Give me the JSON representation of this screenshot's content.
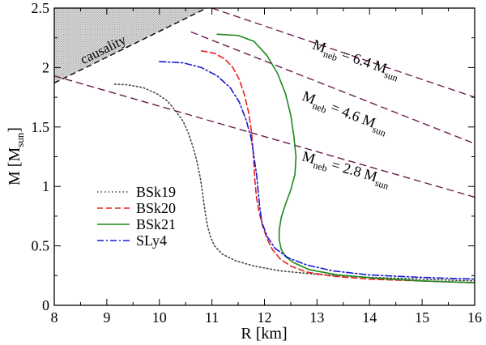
{
  "chart_data": {
    "type": "line",
    "xlabel": "R [km]",
    "ylabel": "M [M",
    "ylabel_sub": "sun",
    "ylabel_close": "]",
    "xlim": [
      8,
      16
    ],
    "ylim": [
      0,
      2.5
    ],
    "xticks": [
      8,
      9,
      10,
      11,
      12,
      13,
      14,
      15,
      16
    ],
    "xtick_labels": [
      "8",
      "9",
      "10",
      "11",
      "12",
      "13",
      "14",
      "15",
      "16"
    ],
    "yticks": [
      0,
      0.5,
      1,
      1.5,
      2,
      2.5
    ],
    "ytick_labels": [
      "0",
      "0.5",
      "1",
      "1.5",
      "2",
      "2.5"
    ],
    "causality": {
      "label": "causality",
      "line": [
        [
          8,
          1.87
        ],
        [
          10.9,
          2.5
        ]
      ],
      "fill": "#bfbfbf"
    },
    "nebula_lines": [
      {
        "name": "M_neb = 6.4 M_sun",
        "label_main": "M",
        "label_sub1": "neb",
        "label_mid": " = 6.4 M",
        "label_sub2": "sun",
        "label_at": [
          12.9,
          2.16
        ],
        "x": [
          11,
          16
        ],
        "y": [
          2.5,
          1.75
        ]
      },
      {
        "name": "M_neb = 4.6 M_sun",
        "label_main": "M",
        "label_sub1": "neb",
        "label_mid": " = 4.6 M",
        "label_sub2": "sun",
        "label_at": [
          12.7,
          1.73
        ],
        "x": [
          10.6,
          16
        ],
        "y": [
          2.3,
          1.36
        ]
      },
      {
        "name": "M_neb = 2.8 M_sun",
        "label_main": "M",
        "label_sub1": "neb",
        "label_mid": " = 2.8 M",
        "label_sub2": "sun",
        "label_at": [
          12.7,
          1.22
        ],
        "x": [
          8,
          16
        ],
        "y": [
          1.93,
          0.91
        ]
      }
    ],
    "series": [
      {
        "name": "BSk19",
        "color": "#444444",
        "dash": "dotted",
        "x": [
          9.15,
          9.4,
          9.7,
          9.95,
          10.15,
          10.3,
          10.45,
          10.55,
          10.65,
          10.72,
          10.78,
          10.82,
          10.85,
          10.88,
          10.92,
          10.97,
          11.05,
          11.2,
          11.45,
          11.8,
          12.3,
          13.0,
          14.0,
          15.0,
          16.0
        ],
        "y": [
          1.86,
          1.855,
          1.83,
          1.78,
          1.72,
          1.64,
          1.55,
          1.45,
          1.32,
          1.2,
          1.07,
          0.95,
          0.85,
          0.76,
          0.66,
          0.58,
          0.5,
          0.43,
          0.375,
          0.33,
          0.29,
          0.26,
          0.235,
          0.22,
          0.205
        ]
      },
      {
        "name": "BSk20",
        "color": "#e8201a",
        "dash": "dashed",
        "x": [
          10.8,
          11.05,
          11.25,
          11.4,
          11.52,
          11.62,
          11.7,
          11.75,
          11.78,
          11.8,
          11.82,
          11.85,
          11.9,
          11.97,
          12.05,
          12.15,
          12.3,
          12.5,
          12.8,
          13.3,
          14.0,
          15.0,
          16.0
        ],
        "y": [
          2.14,
          2.12,
          2.07,
          2.0,
          1.9,
          1.77,
          1.62,
          1.47,
          1.32,
          1.18,
          1.04,
          0.9,
          0.78,
          0.66,
          0.56,
          0.47,
          0.39,
          0.33,
          0.28,
          0.245,
          0.22,
          0.205,
          0.19
        ]
      },
      {
        "name": "BSk21",
        "color": "#1a8a1a",
        "dash": "solid",
        "x": [
          11.1,
          11.5,
          11.8,
          12.05,
          12.25,
          12.4,
          12.5,
          12.56,
          12.6,
          12.58,
          12.5,
          12.4,
          12.32,
          12.28,
          12.28,
          12.32,
          12.4,
          12.55,
          12.85,
          13.4,
          14.2,
          15.0,
          16.0
        ],
        "y": [
          2.28,
          2.27,
          2.22,
          2.1,
          1.95,
          1.78,
          1.6,
          1.42,
          1.25,
          1.1,
          0.97,
          0.85,
          0.74,
          0.63,
          0.55,
          0.47,
          0.41,
          0.36,
          0.3,
          0.255,
          0.225,
          0.205,
          0.19
        ]
      },
      {
        "name": "SLy4",
        "color": "#1a1ad6",
        "dash": "dashdot",
        "x": [
          10.0,
          10.45,
          10.8,
          11.1,
          11.35,
          11.52,
          11.65,
          11.75,
          11.8,
          11.85,
          11.88,
          11.91,
          11.95,
          12.05,
          12.2,
          12.45,
          12.8,
          13.3,
          14.0,
          15.0,
          16.0
        ],
        "y": [
          2.05,
          2.04,
          2.0,
          1.93,
          1.83,
          1.71,
          1.56,
          1.4,
          1.25,
          1.1,
          0.96,
          0.83,
          0.7,
          0.58,
          0.48,
          0.4,
          0.34,
          0.29,
          0.255,
          0.235,
          0.22
        ]
      }
    ],
    "nebula_line_color": "#6b1a4f",
    "legend": {
      "placement": "center-left",
      "entries": [
        "BSk19",
        "BSk20",
        "BSk21",
        "SLy4"
      ]
    }
  }
}
